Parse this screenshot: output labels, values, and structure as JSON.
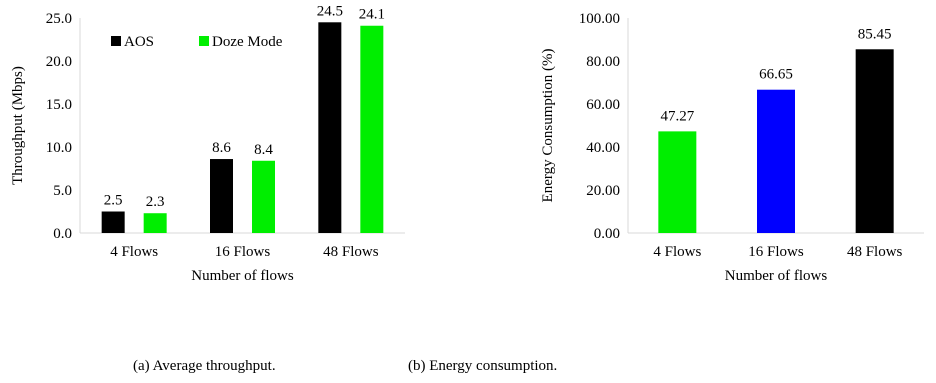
{
  "chart_data": [
    {
      "type": "bar",
      "categories": [
        "4 Flows",
        "16 Flows",
        "48 Flows"
      ],
      "series": [
        {
          "name": "AOS",
          "values": [
            2.5,
            8.6,
            24.5
          ],
          "color": "#000000"
        },
        {
          "name": "Doze Mode",
          "values": [
            2.3,
            8.4,
            24.1
          ],
          "color": "#00ee00"
        }
      ],
      "data_labels": [
        [
          "2.5",
          "8.6",
          "24.5"
        ],
        [
          "2.3",
          "8.4",
          "24.1"
        ]
      ],
      "yticks": [
        "0.0",
        "5.0",
        "10.0",
        "15.0",
        "20.0",
        "25.0"
      ],
      "ylim": [
        0,
        25
      ],
      "xlabel": "Number of  flows",
      "ylabel": "Throughput (Mbps)",
      "legend": "top-left",
      "grid": false
    },
    {
      "type": "bar",
      "categories": [
        "4 Flows",
        "16 Flows",
        "48 Flows"
      ],
      "values": [
        47.27,
        66.65,
        85.45
      ],
      "data_labels": [
        "47.27",
        "66.65",
        "85.45"
      ],
      "colors": [
        "#00ee00",
        "#0000ff",
        "#000000"
      ],
      "yticks": [
        "0.00",
        "20.00",
        "40.00",
        "60.00",
        "80.00",
        "100.00"
      ],
      "ylim": [
        0,
        100
      ],
      "xlabel": "Number of flows",
      "ylabel": "Energy Consumption  (%)",
      "grid": false
    }
  ],
  "captions": {
    "a": "(a)  Average throughput.",
    "b": "(b)  Energy consumption."
  }
}
